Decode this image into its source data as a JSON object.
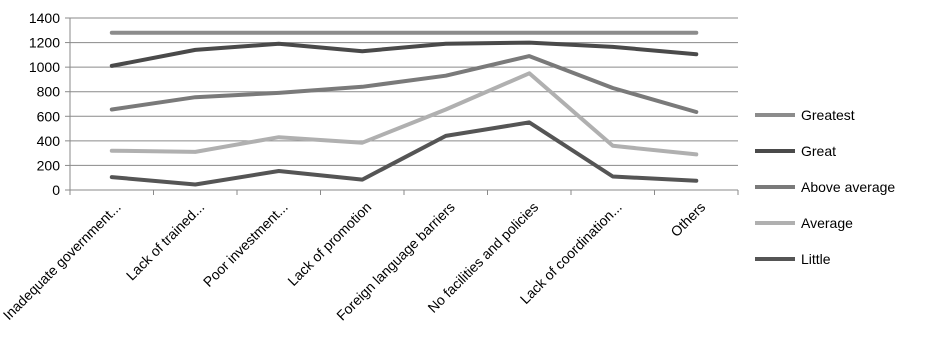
{
  "chart_data": {
    "type": "line",
    "title": "",
    "xlabel": "",
    "ylabel": "",
    "ylim": [
      0,
      1400
    ],
    "yticks": [
      0,
      200,
      400,
      600,
      800,
      1000,
      1200,
      1400
    ],
    "grid": true,
    "legend_position": "right",
    "categories": [
      "Inadequate government...",
      "Lack of trained...",
      "Poor investment...",
      "Lack of promotion",
      "Foreign language barriers",
      "No facilities and policies",
      "Lack of coordination...",
      "Others"
    ],
    "series": [
      {
        "name": "Greatest",
        "color": "#8c8c8c",
        "values": [
          1280,
          1280,
          1280,
          1280,
          1280,
          1280,
          1280,
          1280
        ]
      },
      {
        "name": "Great",
        "color": "#4a4a4a",
        "values": [
          1010,
          1140,
          1190,
          1130,
          1190,
          1200,
          1165,
          1105
        ]
      },
      {
        "name": "Above average",
        "color": "#7a7a7a",
        "values": [
          655,
          755,
          790,
          840,
          930,
          1090,
          830,
          635
        ]
      },
      {
        "name": "Average",
        "color": "#b0b0b0",
        "values": [
          320,
          310,
          430,
          385,
          655,
          950,
          360,
          290
        ]
      },
      {
        "name": "Little",
        "color": "#555555",
        "values": [
          105,
          45,
          155,
          85,
          440,
          550,
          110,
          75
        ]
      }
    ]
  }
}
